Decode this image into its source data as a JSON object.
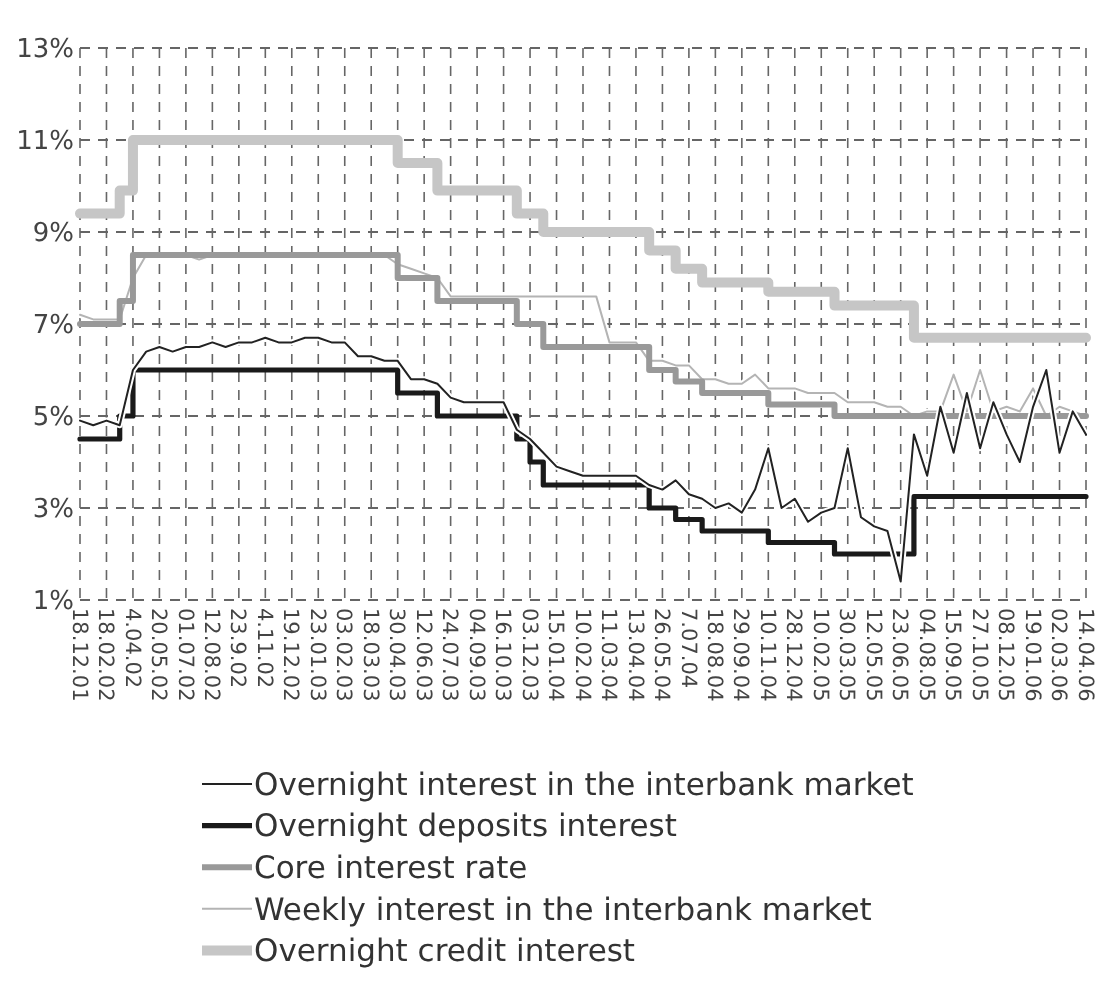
{
  "chart_data": {
    "type": "line",
    "categories": [
      "18.12.01",
      null,
      "18.02.02",
      null,
      "4.04.02",
      null,
      "20.05.02",
      null,
      "01.07.02",
      null,
      "12.08.02",
      null,
      "23.9.02",
      null,
      "4.11.02",
      null,
      "19.12.02",
      null,
      "23.01.03",
      null,
      "03.02.03",
      null,
      "18.03.03",
      null,
      "30.04.03",
      null,
      "12.06.03",
      null,
      "24.07.03",
      null,
      "04.09.03",
      null,
      "16.10.03",
      null,
      "03.12.03",
      null,
      "15.01.04",
      null,
      "10.02.04",
      null,
      "11.03.04",
      null,
      "13.04.04",
      null,
      "26.05.04",
      null,
      "7.07.04",
      null,
      "18.08.04",
      null,
      "29.09.04",
      null,
      "10.11.04",
      null,
      "28.12.04",
      null,
      "10.02.05",
      null,
      "30.03.05",
      null,
      "12.05.05",
      null,
      "23.06.05",
      null,
      "04.08.05",
      null,
      "15.09.05",
      null,
      "27.10.05",
      null,
      "08.12.05",
      null,
      "19.01.06",
      null,
      "02.03.06",
      null,
      "14.04.06"
    ],
    "ylim": [
      1,
      13
    ],
    "yticks": [
      {
        "value": 1,
        "label": "1%"
      },
      {
        "value": 3,
        "label": "3%"
      },
      {
        "value": 5,
        "label": "5%"
      },
      {
        "value": 7,
        "label": "7%"
      },
      {
        "value": 9,
        "label": "9%"
      },
      {
        "value": 11,
        "label": "11%"
      },
      {
        "value": 13,
        "label": "13%"
      }
    ],
    "grid": true,
    "legend": "bottom",
    "line_style": "solid",
    "marker": "none",
    "series": [
      {
        "name": "Overnight interest in the interbank market",
        "type": "line",
        "color": "#222222",
        "values": [
          4.9,
          4.8,
          4.9,
          4.8,
          6.0,
          6.4,
          6.5,
          6.4,
          6.5,
          6.5,
          6.6,
          6.5,
          6.6,
          6.6,
          6.7,
          6.6,
          6.6,
          6.7,
          6.7,
          6.6,
          6.6,
          6.3,
          6.3,
          6.2,
          6.2,
          5.8,
          5.8,
          5.7,
          5.4,
          5.3,
          5.3,
          5.3,
          5.3,
          4.7,
          4.5,
          4.2,
          3.9,
          3.8,
          3.7,
          3.7,
          3.7,
          3.7,
          3.7,
          3.5,
          3.4,
          3.6,
          3.3,
          3.2,
          3.0,
          3.1,
          2.9,
          3.4,
          4.3,
          3.0,
          3.2,
          2.7,
          2.9,
          3.0,
          4.3,
          2.8,
          2.6,
          2.5,
          1.4,
          4.6,
          3.7,
          5.2,
          4.2,
          5.5,
          4.3,
          5.3,
          4.6,
          4.0,
          5.2,
          6.0,
          4.2,
          5.1,
          4.6
        ]
      },
      {
        "name": "Overnight deposits interest",
        "type": "step",
        "color": "#1a1a1a",
        "values": [
          4.5,
          4.5,
          4.5,
          5,
          6,
          6,
          6,
          6,
          6,
          6,
          6,
          6,
          6,
          6,
          6,
          6,
          6,
          6,
          6,
          6,
          6,
          6,
          6,
          6,
          5.5,
          5.5,
          5.5,
          5,
          5,
          5,
          5,
          5,
          5,
          4.5,
          4,
          3.5,
          3.5,
          3.5,
          3.5,
          3.5,
          3.5,
          3.5,
          3.5,
          3,
          3,
          2.75,
          2.75,
          2.5,
          2.5,
          2.5,
          2.5,
          2.5,
          2.25,
          2.25,
          2.25,
          2.25,
          2.25,
          2,
          2,
          2,
          2,
          2,
          2,
          3.25,
          3.25,
          3.25,
          3.25,
          3.25,
          3.25,
          3.25,
          3.25,
          3.25,
          3.25,
          3.25,
          3.25,
          3.25,
          3.25
        ]
      },
      {
        "name": "Core interest rate",
        "type": "step",
        "color": "#999999",
        "values": [
          7,
          7,
          7,
          7.5,
          8.5,
          8.5,
          8.5,
          8.5,
          8.5,
          8.5,
          8.5,
          8.5,
          8.5,
          8.5,
          8.5,
          8.5,
          8.5,
          8.5,
          8.5,
          8.5,
          8.5,
          8.5,
          8.5,
          8.5,
          8,
          8,
          8,
          7.5,
          7.5,
          7.5,
          7.5,
          7.5,
          7.5,
          7,
          7,
          6.5,
          6.5,
          6.5,
          6.5,
          6.5,
          6.5,
          6.5,
          6.5,
          6,
          6,
          5.75,
          5.75,
          5.5,
          5.5,
          5.5,
          5.5,
          5.5,
          5.25,
          5.25,
          5.25,
          5.25,
          5.25,
          5,
          5,
          5,
          5,
          5,
          5,
          5,
          5,
          5,
          5,
          5,
          5,
          5,
          5,
          5,
          5,
          5,
          5,
          5,
          5
        ]
      },
      {
        "name": "Weekly interest in the interbank market",
        "type": "line",
        "color": "#b4b4b4",
        "values": [
          7.2,
          7.1,
          7.1,
          7.1,
          8.0,
          8.5,
          8.5,
          8.5,
          8.5,
          8.4,
          8.5,
          8.5,
          8.5,
          8.5,
          8.5,
          8.5,
          8.5,
          8.5,
          8.5,
          8.5,
          8.5,
          8.5,
          8.5,
          8.5,
          8.3,
          8.2,
          8.1,
          8.0,
          7.6,
          7.6,
          7.6,
          7.6,
          7.6,
          7.6,
          7.6,
          7.6,
          7.6,
          7.6,
          7.6,
          7.6,
          6.6,
          6.6,
          6.6,
          6.2,
          6.2,
          6.1,
          6.1,
          5.8,
          5.8,
          5.7,
          5.7,
          5.9,
          5.6,
          5.6,
          5.6,
          5.5,
          5.5,
          5.5,
          5.3,
          5.3,
          5.3,
          5.2,
          5.2,
          5.0,
          5.1,
          5.1,
          5.9,
          5.1,
          6.0,
          5.1,
          5.2,
          5.1,
          5.6,
          5.0,
          5.2,
          5.1,
          5.0
        ]
      },
      {
        "name": "Overnight credit interest",
        "type": "step",
        "color": "#c6c6c6",
        "values": [
          9.4,
          9.4,
          9.4,
          9.9,
          11,
          11,
          11,
          11,
          11,
          11,
          11,
          11,
          11,
          11,
          11,
          11,
          11,
          11,
          11,
          11,
          11,
          11,
          11,
          11,
          10.5,
          10.5,
          10.5,
          9.9,
          9.9,
          9.9,
          9.9,
          9.9,
          9.9,
          9.4,
          9.4,
          9,
          9,
          9,
          9,
          9,
          9,
          9,
          9,
          8.6,
          8.6,
          8.2,
          8.2,
          7.9,
          7.9,
          7.9,
          7.9,
          7.9,
          7.7,
          7.7,
          7.7,
          7.7,
          7.7,
          7.4,
          7.4,
          7.4,
          7.4,
          7.4,
          7.4,
          6.7,
          6.7,
          6.7,
          6.7,
          6.7,
          6.7,
          6.7,
          6.7,
          6.7,
          6.7,
          6.7,
          6.7,
          6.7,
          6.7
        ]
      }
    ]
  }
}
